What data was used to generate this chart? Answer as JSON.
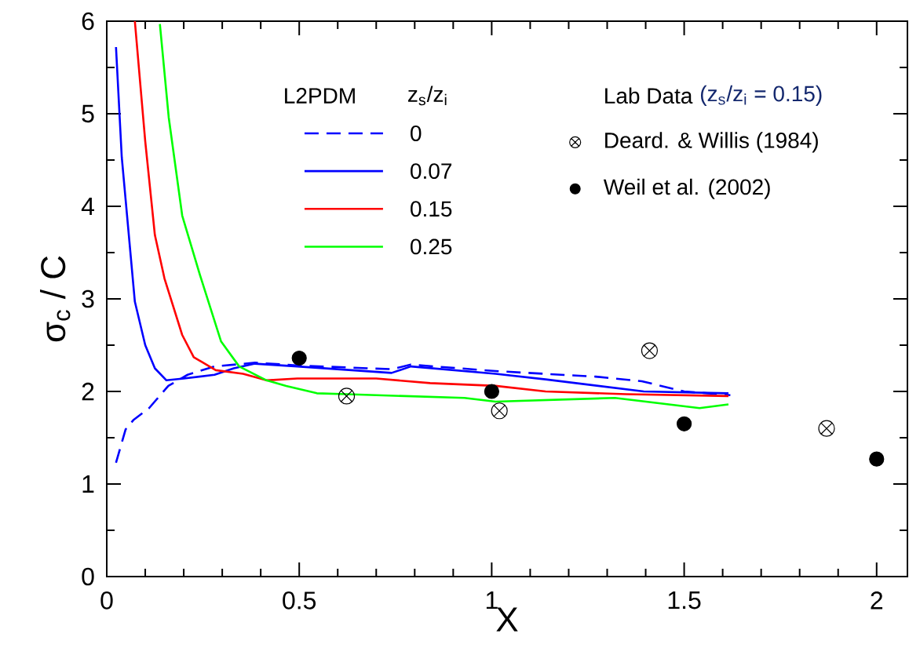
{
  "chart_data": {
    "type": "line",
    "xlabel": "X",
    "ylabel": "σ$_{c}$ / C",
    "legend_title": "L2PDM",
    "annotations": [
      "z$_{s}$/z$_{i}$",
      "Lab Data",
      "(z$_{s}$/z$_{i}$ = 0.15)"
    ],
    "xlim": [
      0,
      2.08
    ],
    "ylim": [
      0,
      6
    ],
    "xticks": [
      0,
      0.5,
      1,
      1.5,
      2
    ],
    "yticks": [
      0,
      1,
      2,
      3,
      4,
      5,
      6
    ],
    "legend": "top",
    "series": [
      {
        "name": "0",
        "color": "#0000ff",
        "line_style": "dashed",
        "marker": "none",
        "x": [
          0.024,
          0.049,
          0.069,
          0.11,
          0.16,
          0.21,
          0.28,
          0.385,
          0.5,
          0.74,
          0.79,
          1.01,
          1.18,
          1.27,
          1.39,
          1.5,
          1.62
        ],
        "values": [
          1.23,
          1.59,
          1.69,
          1.82,
          2.06,
          2.18,
          2.27,
          2.31,
          2.28,
          2.24,
          2.29,
          2.22,
          2.18,
          2.16,
          2.11,
          2.0,
          1.96
        ]
      },
      {
        "name": "0.07",
        "color": "#0000ff",
        "line_style": "solid",
        "marker": "none",
        "x": [
          0.024,
          0.039,
          0.073,
          0.1,
          0.125,
          0.155,
          0.2,
          0.28,
          0.33,
          0.385,
          0.495,
          0.74,
          0.79,
          1.01,
          1.14,
          1.395,
          1.615
        ],
        "values": [
          5.72,
          4.53,
          2.97,
          2.5,
          2.25,
          2.12,
          2.14,
          2.18,
          2.25,
          2.3,
          2.27,
          2.2,
          2.27,
          2.19,
          2.13,
          2.0,
          1.98
        ]
      },
      {
        "name": "0.15",
        "color": "#ff0000",
        "line_style": "solid",
        "marker": "none",
        "x": [
          0.073,
          0.1,
          0.125,
          0.15,
          0.196,
          0.226,
          0.283,
          0.354,
          0.415,
          0.495,
          0.7,
          0.84,
          1.01,
          1.14,
          1.35,
          1.615
        ],
        "values": [
          6.0,
          4.7,
          3.69,
          3.22,
          2.61,
          2.37,
          2.23,
          2.19,
          2.12,
          2.14,
          2.14,
          2.09,
          2.06,
          2.0,
          1.97,
          1.95
        ]
      },
      {
        "name": "0.25",
        "color": "#00ff00",
        "line_style": "solid",
        "marker": "none",
        "x": [
          0.138,
          0.161,
          0.196,
          0.242,
          0.297,
          0.344,
          0.415,
          0.466,
          0.546,
          0.623,
          0.929,
          1.01,
          1.32,
          1.54,
          1.615
        ],
        "values": [
          5.97,
          4.96,
          3.9,
          3.26,
          2.54,
          2.27,
          2.12,
          2.06,
          1.98,
          1.97,
          1.93,
          1.89,
          1.93,
          1.82,
          1.86
        ]
      },
      {
        "name": "Deard. & Willis (1984)",
        "type": "scatter",
        "color": "#000000",
        "marker": "cross",
        "x": [
          0.623,
          1.02,
          1.41,
          1.87
        ],
        "values": [
          1.95,
          1.79,
          2.44,
          1.6
        ]
      },
      {
        "name": "Weil et al. (2002)",
        "type": "scatter",
        "color": "#000000",
        "marker": "circle",
        "x": [
          0.5,
          1.0,
          1.5,
          2.0
        ],
        "values": [
          2.36,
          2.0,
          1.65,
          1.27
        ]
      }
    ]
  }
}
